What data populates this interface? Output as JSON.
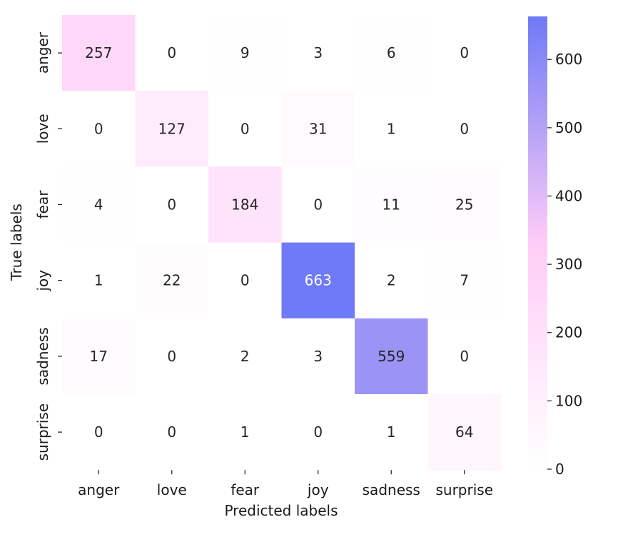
{
  "chart_data": {
    "type": "heatmap",
    "title": "",
    "xlabel": "Predicted labels",
    "ylabel": "True labels",
    "x_categories": [
      "anger",
      "love",
      "fear",
      "joy",
      "sadness",
      "surprise"
    ],
    "y_categories": [
      "anger",
      "love",
      "fear",
      "joy",
      "sadness",
      "surprise"
    ],
    "values": [
      [
        257,
        0,
        9,
        3,
        6,
        0
      ],
      [
        0,
        127,
        0,
        31,
        1,
        0
      ],
      [
        4,
        0,
        184,
        0,
        11,
        25
      ],
      [
        1,
        22,
        0,
        663,
        2,
        7
      ],
      [
        17,
        0,
        2,
        3,
        559,
        0
      ],
      [
        0,
        0,
        1,
        0,
        1,
        64
      ]
    ],
    "colorbar": {
      "vmin": 0,
      "vmax": 663,
      "ticks": [
        0,
        100,
        200,
        300,
        400,
        500,
        600
      ],
      "colors": [
        "#ffffff",
        "#ffccf7",
        "#6e7af6"
      ]
    },
    "annotation_colors": {
      "dark": "#262626",
      "light": "#ffffff"
    }
  }
}
